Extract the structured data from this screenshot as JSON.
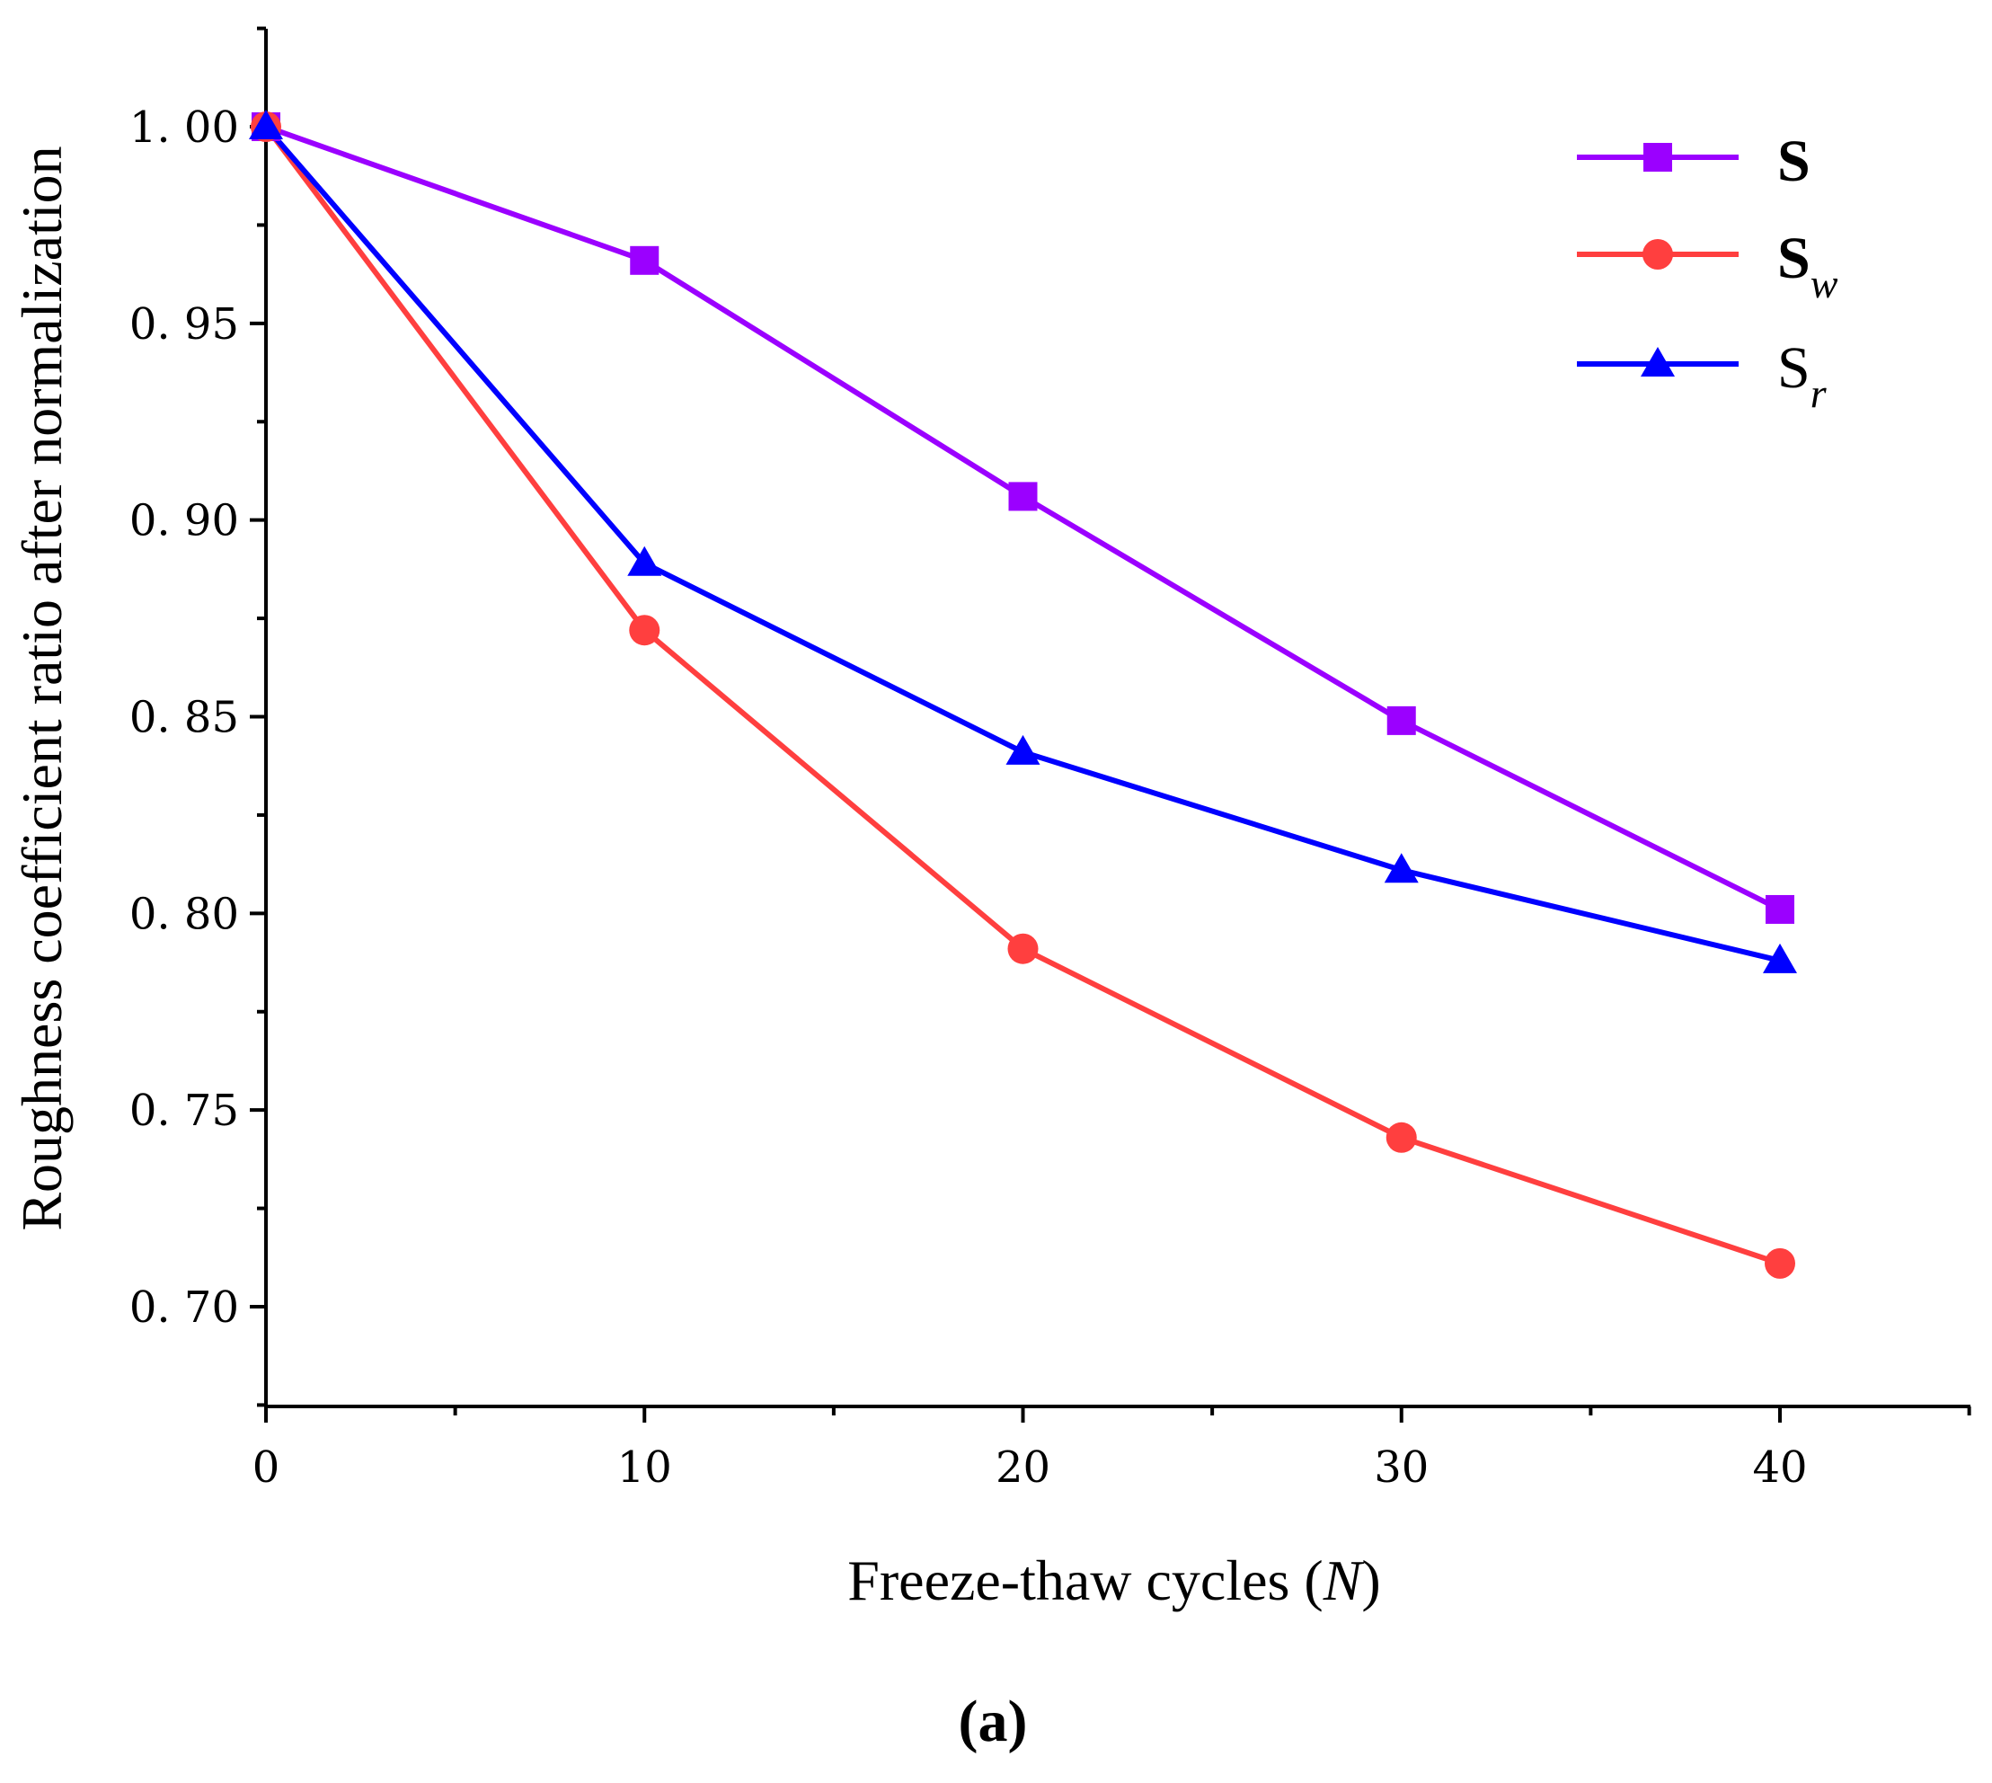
{
  "chart_data": {
    "type": "line",
    "title": "",
    "xlabel": "Freeze-thaw cycles (",
    "xlabel_var": "N",
    "xlabel_close": ")",
    "ylabel": "Roughness coefficient ratio after normalization",
    "xlim": [
      0,
      45
    ],
    "ylim": [
      0.675,
      1.025
    ],
    "x_ticks": [
      0,
      10,
      20,
      30,
      40
    ],
    "x_minor_ticks": [
      5,
      15,
      25,
      35,
      45
    ],
    "x_tick_labels": [
      "0",
      "10",
      "20",
      "30",
      "40"
    ],
    "y_ticks": [
      0.7,
      0.75,
      0.8,
      0.85,
      0.9,
      0.95,
      1.0
    ],
    "y_minor_ticks": [
      0.675,
      0.725,
      0.775,
      0.825,
      0.875,
      0.925,
      0.975,
      1.025
    ],
    "y_tick_labels": [
      "0. 70",
      "0. 75",
      "0. 80",
      "0. 85",
      "0. 90",
      "0. 95",
      "1. 00"
    ],
    "x": [
      0,
      10,
      20,
      30,
      40
    ],
    "series": [
      {
        "name": "S",
        "sub": "",
        "marker": "square",
        "color": "#9B00FF",
        "values": [
          1.0,
          0.966,
          0.906,
          0.849,
          0.801
        ]
      },
      {
        "name": "S",
        "sub": "w",
        "marker": "circle",
        "color": "#FF3F3F",
        "values": [
          1.0,
          0.872,
          0.791,
          0.743,
          0.711
        ]
      },
      {
        "name": "S",
        "sub": "r",
        "marker": "triangle",
        "color": "#0000FF",
        "values": [
          1.0,
          0.889,
          0.841,
          0.811,
          0.788
        ]
      }
    ],
    "legend_position": "top-right",
    "panel_label": "(a)"
  }
}
